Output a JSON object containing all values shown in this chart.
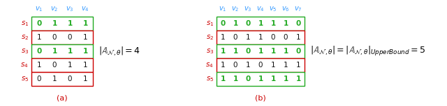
{
  "fig_width": 6.4,
  "fig_height": 1.53,
  "dpi": 100,
  "background_color": "#ffffff",
  "panel_a": {
    "col_labels": [
      "$v_1$",
      "$v_2$",
      "$v_3$",
      "$v_4$"
    ],
    "row_labels": [
      "$s_1$",
      "$s_2$",
      "$s_3$",
      "$s_4$",
      "$s_5$"
    ],
    "matrix": [
      [
        0,
        1,
        1,
        1
      ],
      [
        1,
        0,
        0,
        1
      ],
      [
        0,
        1,
        1,
        1
      ],
      [
        1,
        0,
        1,
        1
      ],
      [
        0,
        1,
        0,
        1
      ]
    ],
    "highlighted_rows": [
      0,
      2
    ],
    "caption": "(a)",
    "equation": "$|\\mathbb{A}_{\\mathcal{N},\\theta}| = 4$"
  },
  "panel_b": {
    "col_labels": [
      "$v_1$",
      "$v_2$",
      "$v_3$",
      "$v_4$",
      "$v_5$",
      "$v_6$",
      "$v_7$"
    ],
    "row_labels": [
      "$s_1$",
      "$s_2$",
      "$s_3$",
      "$s_4$",
      "$s_5$"
    ],
    "matrix": [
      [
        0,
        1,
        0,
        1,
        1,
        1,
        0
      ],
      [
        1,
        0,
        1,
        1,
        0,
        0,
        1
      ],
      [
        1,
        1,
        0,
        1,
        1,
        1,
        0
      ],
      [
        1,
        0,
        1,
        0,
        1,
        1,
        1
      ],
      [
        1,
        1,
        0,
        1,
        1,
        1,
        1
      ]
    ],
    "highlighted_rows": [
      0,
      2,
      4
    ],
    "caption": "(b)",
    "equation": "$|\\mathbb{A}_{\\mathcal{N},\\theta}| = |\\mathbb{A}_{\\mathcal{N},\\theta}|_{UpperBound} = 5$"
  },
  "row_label_color": "#cc0000",
  "col_label_color": "#3399ff",
  "matrix_normal_color": "#111111",
  "matrix_highlight_color": "#22aa22",
  "box_normal_color": "#cc0000",
  "box_highlight_color": "#22aa22",
  "caption_color": "#cc0000",
  "equation_color": "#000000"
}
